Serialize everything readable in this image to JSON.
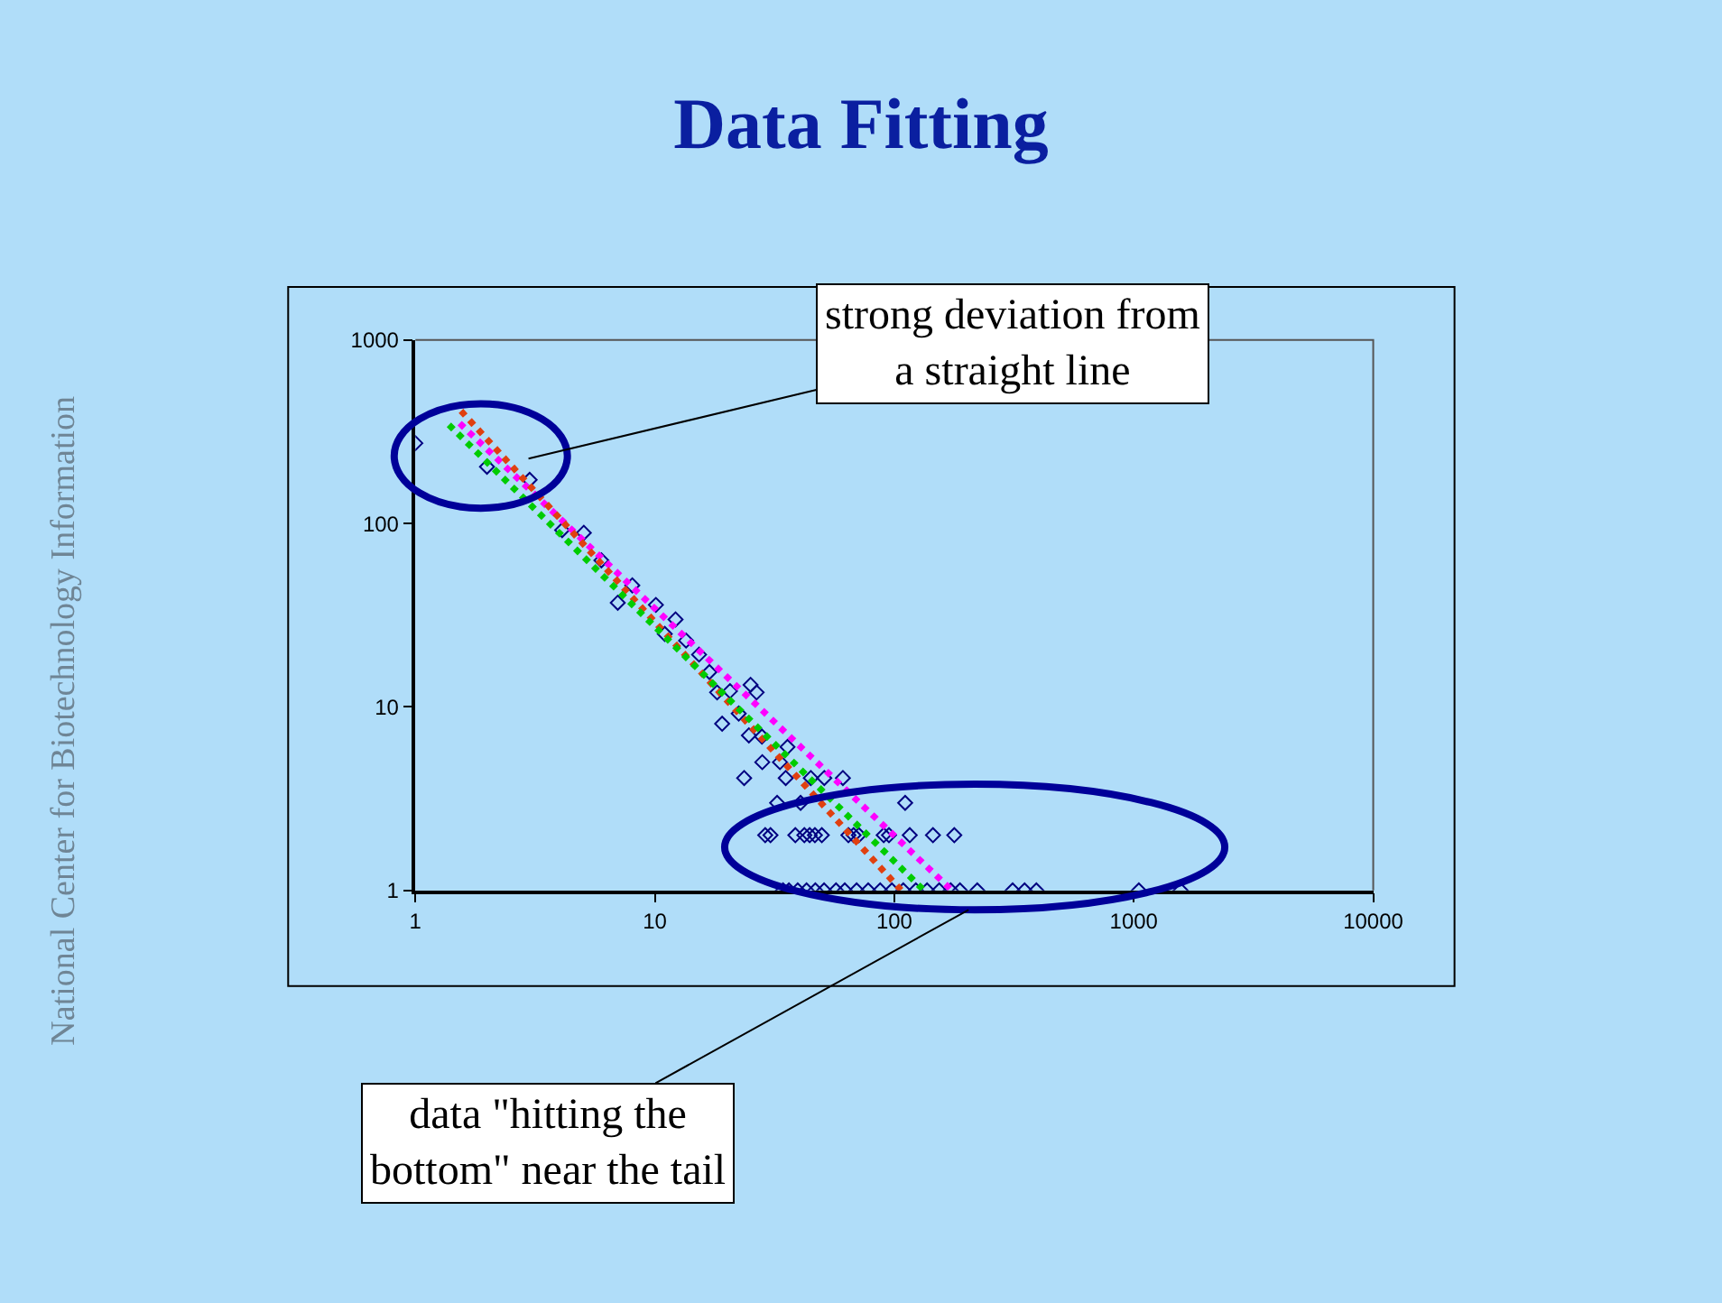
{
  "chart_data": {
    "type": "scatter",
    "title": "Data Fitting",
    "annotations": [
      "strong deviation from\na straight line",
      "data \"hitting the\nbottom\" near the tail",
      "National Center for Biotechnology Information"
    ],
    "xlim": [
      1,
      10000
    ],
    "ylim": [
      1,
      1000
    ],
    "xticks": [
      1,
      10,
      100,
      1000,
      10000
    ],
    "yticks": [
      1,
      10,
      100,
      1000
    ],
    "log": "xy",
    "grid": false,
    "marker": "diamond",
    "series": [
      {
        "color": "#000080",
        "x": [
          1,
          1.99,
          3.0,
          4.1,
          5.05,
          5.98,
          7.0,
          8.05,
          10.1,
          11.0,
          12.2,
          13.5,
          15.3,
          16.9,
          18.2,
          20.6,
          25.1,
          26.6,
          19.1,
          22.4,
          24.7,
          28.0,
          35.8,
          28.1,
          33.3,
          23.6,
          35.2,
          44.8,
          51,
          61,
          32.4,
          40.6,
          111,
          28.9,
          30.4,
          38.6,
          42.1,
          44.3,
          46.6,
          49.8,
          64.3,
          67.6,
          71.1,
          90.3,
          95,
          116,
          145,
          178,
          34.3,
          36.3,
          39.5,
          43.0,
          46.8,
          50.9,
          57.1,
          62.1,
          69.6,
          77.8,
          87.3,
          97.7,
          109,
          123,
          137,
          154,
          172,
          188,
          222,
          312,
          350,
          392,
          1050,
          1570
        ],
        "values": [
          274,
          204,
          173,
          92,
          89,
          63,
          37,
          46,
          36,
          25,
          30,
          23,
          19.3,
          15.5,
          12,
          12.2,
          13.2,
          12,
          8.1,
          9.2,
          7.0,
          6.9,
          6.05,
          5.0,
          5.0,
          4.1,
          4.1,
          4.1,
          4.1,
          4.1,
          3.0,
          3.0,
          3.0,
          2,
          2,
          2,
          2,
          2,
          2,
          2,
          2,
          2,
          2,
          2,
          2,
          2,
          2,
          2,
          1,
          1,
          1,
          1,
          1,
          1,
          1,
          1,
          1,
          1,
          1,
          1,
          1,
          1,
          1,
          1,
          1,
          1,
          1,
          1,
          1,
          1,
          1,
          1
        ]
      },
      {
        "type": "line",
        "color": "#ff00ff",
        "x": [
          1.53,
          174
        ],
        "values": [
          352,
          1
        ],
        "line_style": "dotted",
        "marker": "none"
      },
      {
        "type": "line",
        "color": "#e04010",
        "x": [
          1.55,
          107
        ],
        "values": [
          411,
          1
        ],
        "line_style": "dotted",
        "marker": "none"
      },
      {
        "type": "line",
        "color": "#00cc00",
        "x": [
          1.38,
          133
        ],
        "values": [
          345,
          1
        ],
        "line_style": "dotted",
        "marker": "none"
      }
    ]
  }
}
